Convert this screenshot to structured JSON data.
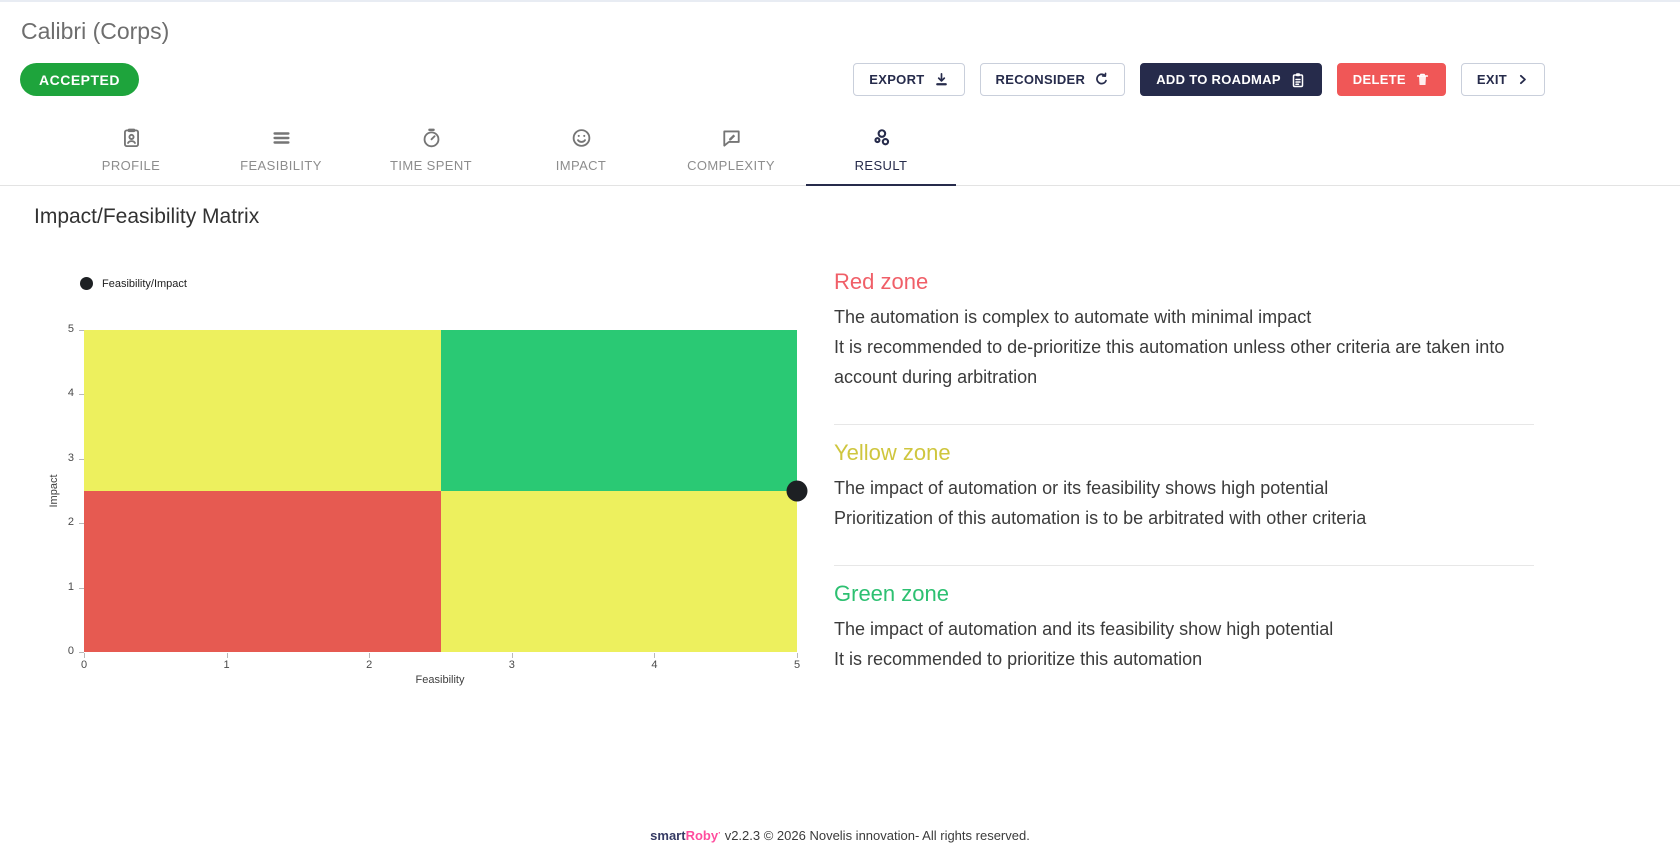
{
  "header": {
    "title": "Calibri (Corps)",
    "status_badge": "ACCEPTED",
    "actions": {
      "export_label": "EXPORT",
      "reconsider_label": "RECONSIDER",
      "add_to_roadmap_label": "ADD TO ROADMAP",
      "delete_label": "DELETE",
      "exit_label": "EXIT"
    }
  },
  "tabs": [
    {
      "label": "PROFILE",
      "icon": "id-badge-icon",
      "active": false
    },
    {
      "label": "FEASIBILITY",
      "icon": "list-icon",
      "active": false
    },
    {
      "label": "TIME SPENT",
      "icon": "stopwatch-icon",
      "active": false
    },
    {
      "label": "IMPACT",
      "icon": "smiley-icon",
      "active": false
    },
    {
      "label": "COMPLEXITY",
      "icon": "feedback-bubble-icon",
      "active": false
    },
    {
      "label": "RESULT",
      "icon": "bubble-chart-icon",
      "active": true
    }
  ],
  "section_title": "Impact/Feasibility Matrix",
  "chart_data": {
    "type": "scatter",
    "legend_label": "Feasibility/Impact",
    "xlabel": "Feasibility",
    "ylabel": "Impact",
    "xlim": [
      0,
      5
    ],
    "ylim": [
      0,
      5
    ],
    "xticks": [
      0,
      1,
      2,
      3,
      4,
      5
    ],
    "yticks": [
      0,
      1,
      2,
      3,
      4,
      5
    ],
    "grid": false,
    "legend_position": "top-left",
    "point_color": "#1d2023",
    "points": [
      {
        "x": 5,
        "y": 2.5
      }
    ],
    "quadrants": [
      {
        "zone": "yellow-top-left",
        "x": [
          0,
          2.5
        ],
        "y": [
          2.5,
          5
        ],
        "color": "#edf05e"
      },
      {
        "zone": "green-top-right",
        "x": [
          2.5,
          5
        ],
        "y": [
          2.5,
          5
        ],
        "color": "#2ac974"
      },
      {
        "zone": "red-bottom-left",
        "x": [
          0,
          2.5
        ],
        "y": [
          0,
          2.5
        ],
        "color": "#e65a51"
      },
      {
        "zone": "yellow-bottom-right",
        "x": [
          2.5,
          5
        ],
        "y": [
          0,
          2.5
        ],
        "color": "#edf05e"
      }
    ]
  },
  "zones": [
    {
      "name": "Red zone",
      "color": "#f05f68",
      "lines": [
        "The automation is complex to automate with minimal impact",
        "It is recommended to de-prioritize this automation unless other criteria are taken into account during arbitration"
      ]
    },
    {
      "name": "Yellow zone",
      "color": "#cfc63e",
      "lines": [
        "The impact of automation or its feasibility shows high potential",
        "Prioritization of this automation is to be arbitrated with other criteria"
      ]
    },
    {
      "name": "Green zone",
      "color": "#2dc071",
      "lines": [
        "The impact of automation and its feasibility show high potential",
        "It is recommended to prioritize this automation"
      ]
    }
  ],
  "footer": {
    "brand_smart": "smart",
    "brand_roby": "Roby",
    "brand_mark": "·",
    "text": "v2.2.3 © 2026 Novelis innovation- All rights reserved."
  }
}
